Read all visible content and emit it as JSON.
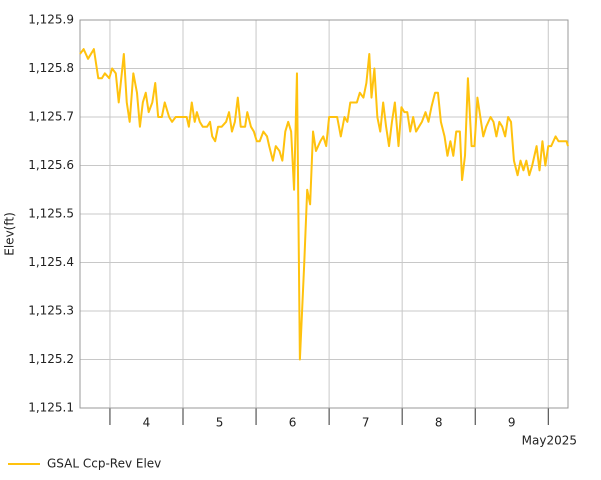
{
  "chart_data": {
    "type": "line",
    "ylabel": "Elev(ft)",
    "xlabel": "May2025",
    "xlim": [
      3.59,
      10.27
    ],
    "ylim": [
      1125.1,
      1125.9
    ],
    "yticks": [
      {
        "value": 1125.1,
        "label": "1,125.1"
      },
      {
        "value": 1125.2,
        "label": "1,125.2"
      },
      {
        "value": 1125.3,
        "label": "1,125.3"
      },
      {
        "value": 1125.4,
        "label": "1,125.4"
      },
      {
        "value": 1125.5,
        "label": "1,125.5"
      },
      {
        "value": 1125.6,
        "label": "1,125.6"
      },
      {
        "value": 1125.7,
        "label": "1,125.7"
      },
      {
        "value": 1125.8,
        "label": "1,125.8"
      },
      {
        "value": 1125.9,
        "label": "1,125.9"
      }
    ],
    "xticks": [
      {
        "value": 4.5,
        "label": "4"
      },
      {
        "value": 5.5,
        "label": "5"
      },
      {
        "value": 6.5,
        "label": "6"
      },
      {
        "value": 7.5,
        "label": "7"
      },
      {
        "value": 8.5,
        "label": "8"
      },
      {
        "value": 9.5,
        "label": "9"
      }
    ],
    "xgrid": [
      4,
      5,
      6,
      7,
      8,
      9,
      10
    ],
    "grid": true,
    "legend": "bottom-left",
    "x": [
      3.59,
      3.64,
      3.7,
      3.78,
      3.84,
      3.89,
      3.93,
      3.99,
      4.03,
      4.08,
      4.12,
      4.19,
      4.23,
      4.27,
      4.32,
      4.37,
      4.41,
      4.45,
      4.49,
      4.53,
      4.58,
      4.62,
      4.66,
      4.71,
      4.75,
      4.81,
      4.85,
      4.9,
      4.96,
      5.01,
      5.05,
      5.08,
      5.12,
      5.16,
      5.19,
      5.23,
      5.27,
      5.33,
      5.37,
      5.4,
      5.44,
      5.48,
      5.53,
      5.59,
      5.63,
      5.67,
      5.71,
      5.75,
      5.79,
      5.85,
      5.88,
      5.93,
      5.97,
      6.01,
      6.05,
      6.1,
      6.15,
      6.18,
      6.23,
      6.27,
      6.32,
      6.36,
      6.4,
      6.44,
      6.48,
      6.52,
      6.56,
      6.6,
      6.66,
      6.7,
      6.74,
      6.78,
      6.82,
      6.88,
      6.92,
      6.96,
      7.0,
      7.05,
      7.11,
      7.16,
      7.21,
      7.25,
      7.29,
      7.34,
      7.38,
      7.42,
      7.47,
      7.51,
      7.55,
      7.58,
      7.62,
      7.66,
      7.7,
      7.74,
      7.78,
      7.82,
      7.86,
      7.9,
      7.95,
      7.99,
      8.03,
      8.07,
      8.11,
      8.15,
      8.19,
      8.23,
      8.27,
      8.32,
      8.36,
      8.4,
      8.45,
      8.49,
      8.53,
      8.58,
      8.62,
      8.66,
      8.7,
      8.74,
      8.79,
      8.82,
      8.86,
      8.9,
      8.95,
      8.99,
      9.03,
      9.07,
      9.11,
      9.15,
      9.21,
      9.25,
      9.29,
      9.33,
      9.37,
      9.41,
      9.45,
      9.49,
      9.53,
      9.58,
      9.62,
      9.66,
      9.7,
      9.74,
      9.78,
      9.84,
      9.88,
      9.92,
      9.96,
      10.0,
      10.04,
      10.1,
      10.14,
      10.19,
      10.25,
      10.27
    ],
    "series": [
      {
        "name": "GSAL Ccp-Rev Elev",
        "color": "#ffc20e",
        "values": [
          1125.83,
          1125.84,
          1125.82,
          1125.84,
          1125.78,
          1125.78,
          1125.79,
          1125.78,
          1125.8,
          1125.79,
          1125.73,
          1125.83,
          1125.73,
          1125.69,
          1125.79,
          1125.75,
          1125.68,
          1125.73,
          1125.75,
          1125.71,
          1125.73,
          1125.77,
          1125.7,
          1125.7,
          1125.73,
          1125.7,
          1125.69,
          1125.7,
          1125.7,
          1125.7,
          1125.7,
          1125.68,
          1125.73,
          1125.69,
          1125.71,
          1125.69,
          1125.68,
          1125.68,
          1125.69,
          1125.66,
          1125.65,
          1125.68,
          1125.68,
          1125.69,
          1125.71,
          1125.67,
          1125.69,
          1125.74,
          1125.68,
          1125.68,
          1125.71,
          1125.68,
          1125.67,
          1125.65,
          1125.65,
          1125.67,
          1125.66,
          1125.64,
          1125.61,
          1125.64,
          1125.63,
          1125.61,
          1125.67,
          1125.69,
          1125.67,
          1125.55,
          1125.79,
          1125.2,
          1125.4,
          1125.55,
          1125.52,
          1125.67,
          1125.63,
          1125.65,
          1125.66,
          1125.64,
          1125.7,
          1125.7,
          1125.7,
          1125.66,
          1125.7,
          1125.69,
          1125.73,
          1125.73,
          1125.73,
          1125.75,
          1125.74,
          1125.77,
          1125.83,
          1125.74,
          1125.8,
          1125.7,
          1125.67,
          1125.73,
          1125.68,
          1125.64,
          1125.69,
          1125.73,
          1125.64,
          1125.72,
          1125.71,
          1125.71,
          1125.67,
          1125.7,
          1125.67,
          1125.68,
          1125.69,
          1125.71,
          1125.69,
          1125.72,
          1125.75,
          1125.75,
          1125.69,
          1125.66,
          1125.62,
          1125.65,
          1125.62,
          1125.67,
          1125.67,
          1125.57,
          1125.62,
          1125.78,
          1125.64,
          1125.64,
          1125.74,
          1125.7,
          1125.66,
          1125.68,
          1125.7,
          1125.69,
          1125.66,
          1125.69,
          1125.68,
          1125.66,
          1125.7,
          1125.69,
          1125.61,
          1125.58,
          1125.61,
          1125.59,
          1125.61,
          1125.58,
          1125.6,
          1125.64,
          1125.59,
          1125.65,
          1125.6,
          1125.64,
          1125.64,
          1125.66,
          1125.65,
          1125.65,
          1125.65,
          1125.64
        ]
      }
    ]
  }
}
